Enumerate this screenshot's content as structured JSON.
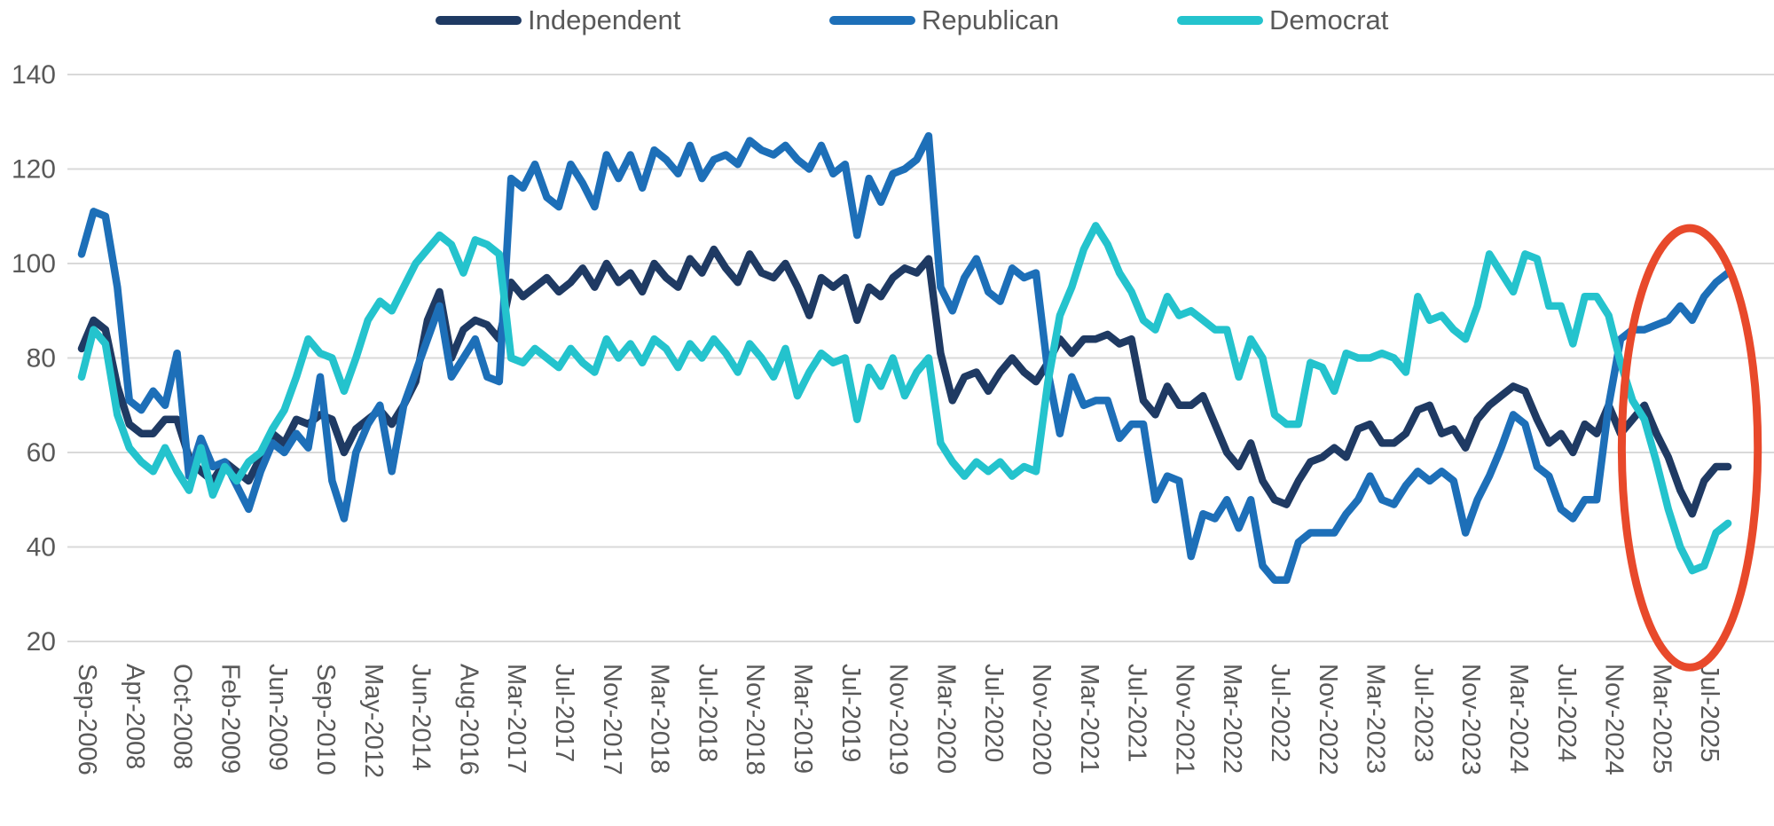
{
  "page": {
    "background_color": "#ffffff",
    "text_color": "#595959",
    "gridline_color": "#d9d9d9"
  },
  "legend": {
    "position": "top-center",
    "items": [
      "Independent",
      "Republican",
      "Democrat"
    ]
  },
  "chart_data": {
    "type": "line",
    "title": "",
    "xlabel": "",
    "ylabel": "",
    "ylim": [
      20,
      140
    ],
    "y_ticks": [
      140,
      120,
      100,
      80,
      60,
      40,
      20
    ],
    "grid": "horizontal",
    "legend_position": "top",
    "x_tick_label_rotation": "vertical-top-down",
    "x_tick_every": 4,
    "n_points": 139,
    "x_tick_labels": [
      "Sep-2006",
      "Apr-2008",
      "Oct-2008",
      "Feb-2009",
      "Jun-2009",
      "Sep-2010",
      "May-2012",
      "Jun-2014",
      "Aug-2016",
      "Mar-2017",
      "Jul-2017",
      "Nov-2017",
      "Mar-2018",
      "Jul-2018",
      "Nov-2018",
      "Mar-2019",
      "Jul-2019",
      "Nov-2019",
      "Mar-2020",
      "Jul-2020",
      "Nov-2020",
      "Mar-2021",
      "Jul-2021",
      "Nov-2021",
      "Mar-2022",
      "Jul-2022",
      "Nov-2022",
      "Mar-2023",
      "Jul-2023",
      "Nov-2023",
      "Mar-2024",
      "Jul-2024",
      "Nov-2024",
      "Mar-2025",
      "Jul-2025"
    ],
    "series": [
      {
        "name": "Independent",
        "color": "#1f3a63",
        "values": [
          82,
          88,
          86,
          74,
          66,
          64,
          64,
          67,
          67,
          59,
          56,
          54,
          58,
          56,
          54,
          59,
          64,
          62,
          67,
          66,
          68,
          67,
          60,
          65,
          67,
          69,
          66,
          70,
          75,
          88,
          94,
          80,
          86,
          88,
          87,
          84,
          96,
          93,
          95,
          97,
          94,
          96,
          99,
          95,
          100,
          96,
          98,
          94,
          100,
          97,
          95,
          101,
          98,
          103,
          99,
          96,
          102,
          98,
          97,
          100,
          95,
          89,
          97,
          95,
          97,
          88,
          95,
          93,
          97,
          99,
          98,
          101,
          81,
          71,
          76,
          77,
          73,
          77,
          80,
          77,
          75,
          79,
          84,
          81,
          84,
          84,
          85,
          83,
          84,
          71,
          68,
          74,
          70,
          70,
          72,
          66,
          60,
          57,
          62,
          54,
          50,
          49,
          54,
          58,
          59,
          61,
          59,
          65,
          66,
          62,
          62,
          64,
          69,
          70,
          64,
          65,
          61,
          67,
          70,
          72,
          74,
          73,
          67,
          62,
          64,
          60,
          66,
          64,
          70,
          64,
          67,
          70,
          64,
          59,
          52,
          47,
          54,
          57,
          57
        ]
      },
      {
        "name": "Republican",
        "color": "#1d6fb8",
        "values": [
          102,
          111,
          110,
          95,
          71,
          69,
          73,
          70,
          81,
          55,
          63,
          57,
          58,
          53,
          48,
          56,
          62,
          60,
          64,
          61,
          76,
          54,
          46,
          60,
          66,
          70,
          56,
          70,
          77,
          84,
          91,
          76,
          80,
          84,
          76,
          75,
          118,
          116,
          121,
          114,
          112,
          121,
          117,
          112,
          123,
          118,
          123,
          116,
          124,
          122,
          119,
          125,
          118,
          122,
          123,
          121,
          126,
          124,
          123,
          125,
          122,
          120,
          125,
          119,
          121,
          106,
          118,
          113,
          119,
          120,
          122,
          127,
          95,
          90,
          97,
          101,
          94,
          92,
          99,
          97,
          98,
          77,
          64,
          76,
          70,
          71,
          71,
          63,
          66,
          66,
          50,
          55,
          54,
          38,
          47,
          46,
          50,
          44,
          50,
          36,
          33,
          33,
          41,
          43,
          43,
          43,
          47,
          50,
          55,
          50,
          49,
          53,
          56,
          54,
          56,
          54,
          43,
          50,
          55,
          61,
          68,
          66,
          57,
          55,
          48,
          46,
          50,
          50,
          70,
          84,
          86,
          86,
          87,
          88,
          91,
          88,
          93,
          96,
          98
        ]
      },
      {
        "name": "Democrat",
        "color": "#24c3cd",
        "values": [
          76,
          86,
          83,
          68,
          61,
          58,
          56,
          61,
          56,
          52,
          61,
          51,
          57,
          54,
          58,
          60,
          65,
          69,
          76,
          84,
          81,
          80,
          73,
          80,
          88,
          92,
          90,
          95,
          100,
          103,
          106,
          104,
          98,
          105,
          104,
          102,
          80,
          79,
          82,
          80,
          78,
          82,
          79,
          77,
          84,
          80,
          83,
          79,
          84,
          82,
          78,
          83,
          80,
          84,
          81,
          77,
          83,
          80,
          76,
          82,
          72,
          77,
          81,
          79,
          80,
          67,
          78,
          74,
          80,
          72,
          77,
          80,
          62,
          58,
          55,
          58,
          56,
          58,
          55,
          57,
          56,
          75,
          89,
          95,
          103,
          108,
          104,
          98,
          94,
          88,
          86,
          93,
          89,
          90,
          88,
          86,
          86,
          76,
          84,
          80,
          68,
          66,
          66,
          79,
          78,
          73,
          81,
          80,
          80,
          81,
          80,
          77,
          93,
          88,
          89,
          86,
          84,
          91,
          102,
          98,
          94,
          102,
          101,
          91,
          91,
          83,
          93,
          93,
          89,
          79,
          71,
          67,
          58,
          48,
          40,
          35,
          36,
          43,
          45
        ]
      }
    ],
    "annotation": {
      "shape": "ellipse",
      "color": "#e8492b",
      "highlights": "post-Nov-2024 divergence through 2025",
      "x_center_index": 134.8,
      "y_center_value": 61,
      "x_radius_indices": 5.7,
      "y_radius_values": 46.5
    }
  }
}
